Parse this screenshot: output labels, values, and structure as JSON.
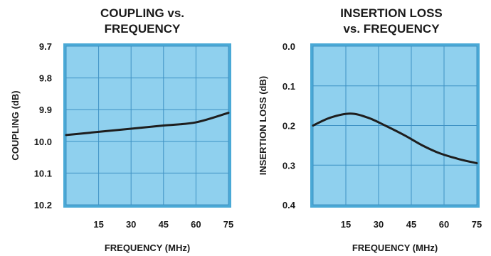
{
  "colors": {
    "plot_fill": "#8fd0ee",
    "plot_border": "#4aa9d6",
    "grid": "#3f92c4",
    "curve": "#1e1e1e",
    "text": "#1a1a1a"
  },
  "chart_data": [
    {
      "type": "line",
      "title_lines": [
        "COUPLING vs.",
        "FREQUENCY"
      ],
      "xlabel": "FREQUENCY (MHz)",
      "ylabel": "COUPLING (dB)",
      "xlim": [
        0,
        75
      ],
      "xticks": [
        15,
        30,
        45,
        60,
        75
      ],
      "ylim": [
        9.7,
        10.2
      ],
      "y_inverted": true,
      "yticks": [
        "9.7",
        "9.8",
        "9.9",
        "10.0",
        "10.1",
        "10.2"
      ],
      "grid": true,
      "series": [
        {
          "x": [
            0,
            15,
            30,
            45,
            60,
            75
          ],
          "y": [
            9.98,
            9.97,
            9.96,
            9.95,
            9.94,
            9.91
          ]
        }
      ]
    },
    {
      "type": "line",
      "title_lines": [
        "INSERTION LOSS",
        "vs. FREQUENCY"
      ],
      "xlabel": "FREQUENCY (MHz)",
      "ylabel": "INSERTION LOSS (dB)",
      "xlim": [
        0,
        75
      ],
      "xticks": [
        15,
        30,
        45,
        60,
        75
      ],
      "ylim": [
        0.0,
        0.4
      ],
      "y_inverted": true,
      "yticks": [
        "0.0",
        "0.1",
        "0.2",
        "0.3",
        "0.4"
      ],
      "grid": true,
      "series": [
        {
          "x": [
            0,
            8,
            17,
            25,
            33,
            42,
            50,
            58,
            67,
            75
          ],
          "y": [
            0.2,
            0.18,
            0.17,
            0.18,
            0.2,
            0.225,
            0.25,
            0.27,
            0.285,
            0.295
          ]
        }
      ]
    }
  ]
}
